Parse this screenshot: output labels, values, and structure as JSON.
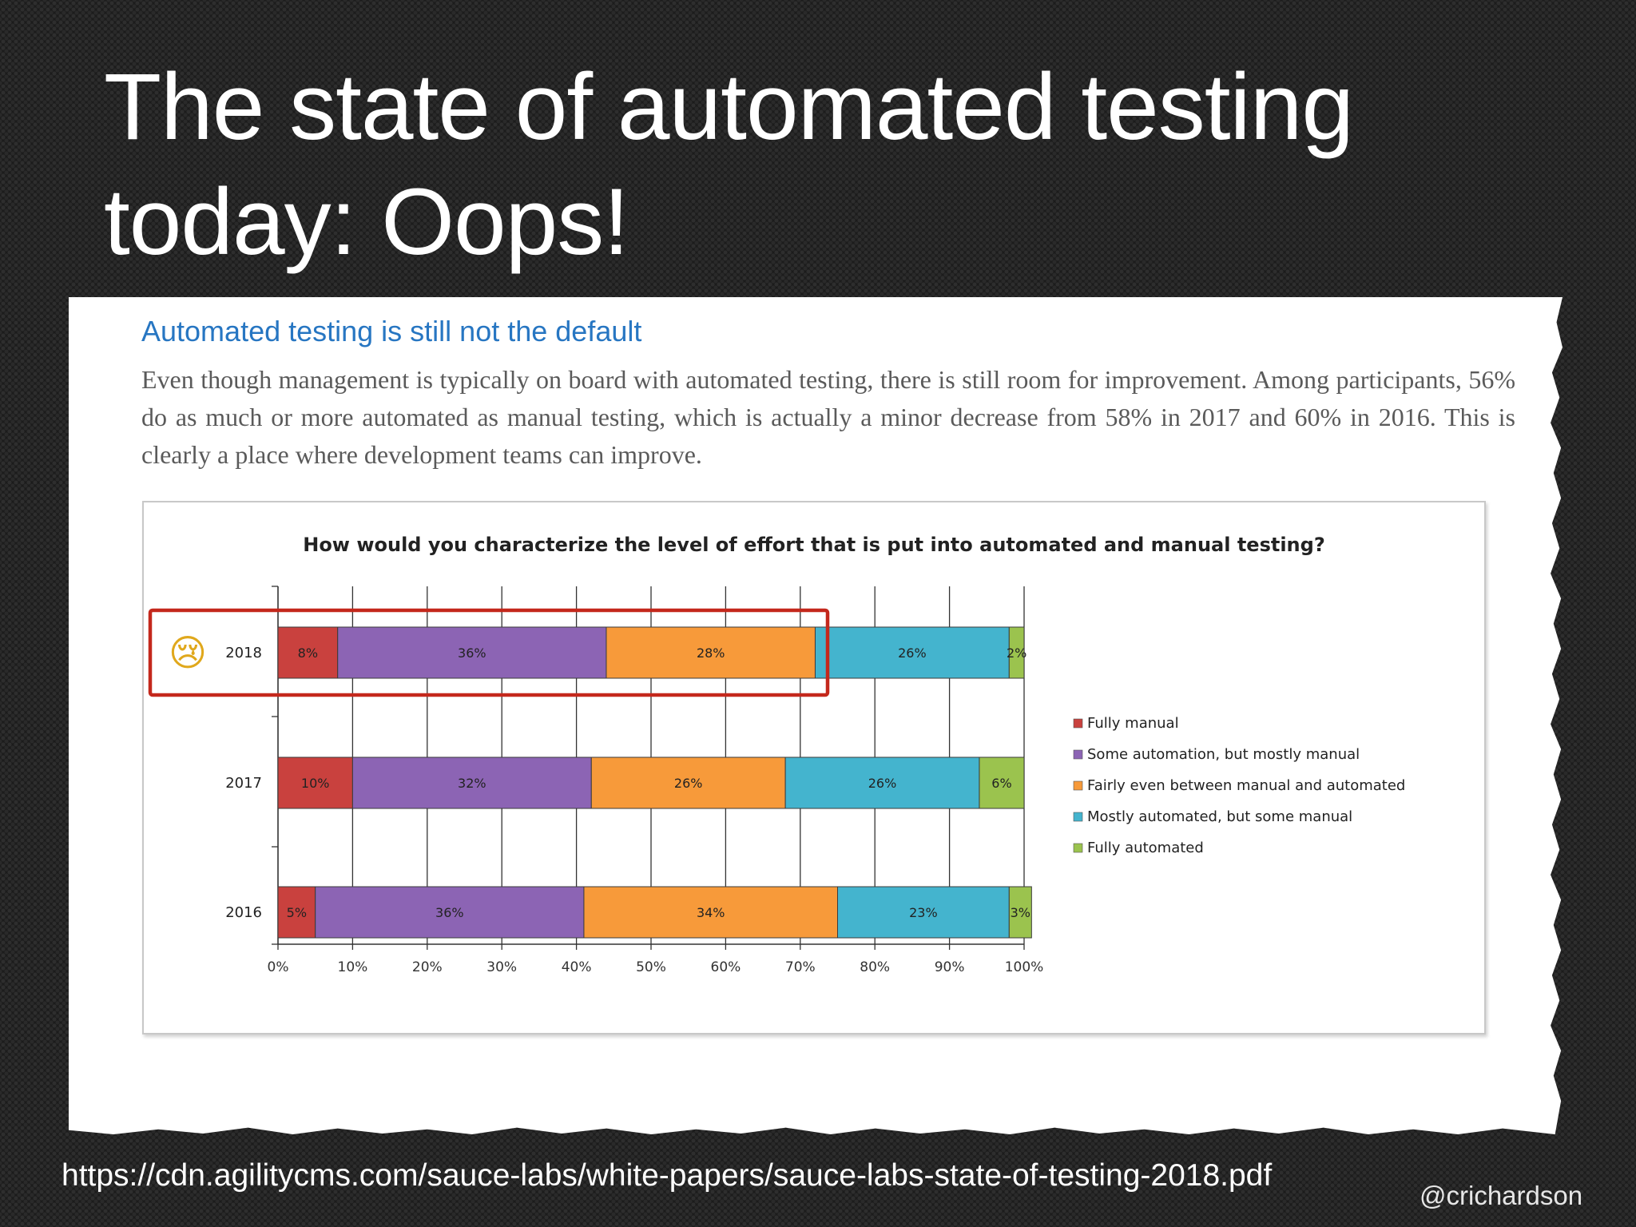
{
  "slide": {
    "title_lines": [
      "The state of automated testing",
      "today: Oops!"
    ],
    "source_url": "https://cdn.agilitycms.com/sauce-labs/white-papers/sauce-labs-state-of-testing-2018.pdf",
    "author_handle": "@crichardson"
  },
  "article": {
    "heading": "Automated testing is still not the default",
    "body": "Even though management is typically on board with automated testing, there is still room for improvement. Among participants, 56% do as much or more automated as manual testing, which is actually a minor decrease from 58% in 2017 and 60% in 2016. This is clearly a place where development teams can improve."
  },
  "highlight": {
    "year": "2018",
    "emoji": "😢",
    "emoji_name": "crying-face",
    "box_color": "#c4281c"
  },
  "chart_data": {
    "type": "bar",
    "orientation": "horizontal-stacked-100",
    "title": "How would you characterize the level of effort that is put into automated and manual testing?",
    "categories": [
      "2018",
      "2017",
      "2016"
    ],
    "series": [
      {
        "name": "Fully manual",
        "color": "#c9413e",
        "values": [
          8,
          10,
          5
        ],
        "labels": [
          "8%",
          "10%",
          "5%"
        ]
      },
      {
        "name": "Some automation, but mostly manual",
        "color": "#8c64b4",
        "values": [
          36,
          32,
          36
        ],
        "labels": [
          "36%",
          "32%",
          "36%"
        ]
      },
      {
        "name": "Fairly even between manual and automated",
        "color": "#f79a3a",
        "values": [
          28,
          26,
          34
        ],
        "labels": [
          "28%",
          "26%",
          "34%"
        ]
      },
      {
        "name": "Mostly automated, but some manual",
        "color": "#44b4ce",
        "values": [
          26,
          26,
          23
        ],
        "labels": [
          "26%",
          "26%",
          "23%"
        ]
      },
      {
        "name": "Fully automated",
        "color": "#9bc34e",
        "values": [
          2,
          6,
          3
        ],
        "labels": [
          "2%",
          "6%",
          "3%"
        ]
      }
    ],
    "xlim": [
      0,
      100
    ],
    "xticks": [
      "0%",
      "10%",
      "20%",
      "30%",
      "40%",
      "50%",
      "60%",
      "70%",
      "80%",
      "90%",
      "100%"
    ],
    "grid": "vertical",
    "legend_position": "right"
  }
}
